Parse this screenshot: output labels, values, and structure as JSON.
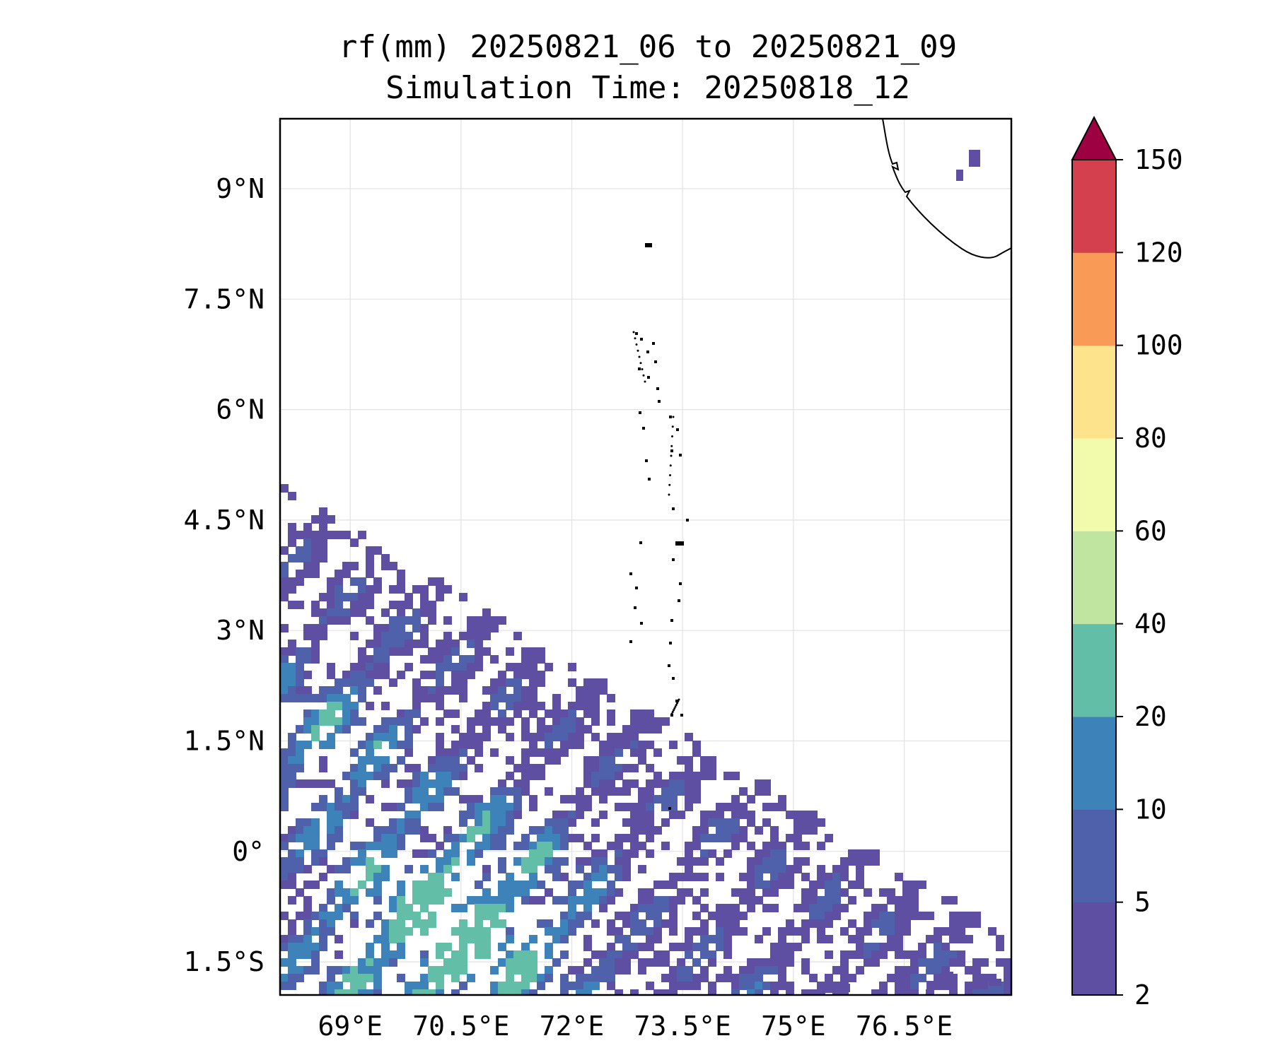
{
  "title_line1": "rf(mm) 20250821_06 to 20250821_09",
  "title_line2": "Simulation Time: 20250818_12",
  "map": {
    "lon_ticks": [
      {
        "value": 69,
        "label": "69°E"
      },
      {
        "value": 70.5,
        "label": "70.5°E"
      },
      {
        "value": 72,
        "label": "72°E"
      },
      {
        "value": 73.5,
        "label": "73.5°E"
      },
      {
        "value": 75,
        "label": "75°E"
      },
      {
        "value": 76.5,
        "label": "76.5°E"
      }
    ],
    "lat_ticks": [
      {
        "value": 9,
        "label": "9°N"
      },
      {
        "value": 7.5,
        "label": "7.5°N"
      },
      {
        "value": 6,
        "label": "6°N"
      },
      {
        "value": 4.5,
        "label": "4.5°N"
      },
      {
        "value": 3,
        "label": "3°N"
      },
      {
        "value": 1.5,
        "label": "1.5°N"
      },
      {
        "value": 0,
        "label": "0°"
      },
      {
        "value": -1.5,
        "label": "1.5°S"
      }
    ],
    "extent": {
      "lon": [
        68.05,
        77.95
      ],
      "lat": [
        -1.95,
        9.95
      ]
    },
    "grid": true,
    "coastline_color": "#000000",
    "rain_field_location": "south-west quadrant"
  },
  "colorbar": {
    "levels": [
      {
        "label": "2",
        "color": "#5e4fa2"
      },
      {
        "label": "5",
        "color": "#4f61aa"
      },
      {
        "label": "10",
        "color": "#3d83ba"
      },
      {
        "label": "20",
        "color": "#62bea6"
      },
      {
        "label": "40",
        "color": "#bfe5a0"
      },
      {
        "label": "60",
        "color": "#f2faac"
      },
      {
        "label": "80",
        "color": "#fde38b"
      },
      {
        "label": "100",
        "color": "#f99b57"
      },
      {
        "label": "120",
        "color": "#d5404e"
      },
      {
        "label": "150",
        "color": "#9e0142"
      }
    ],
    "extend": "max"
  }
}
